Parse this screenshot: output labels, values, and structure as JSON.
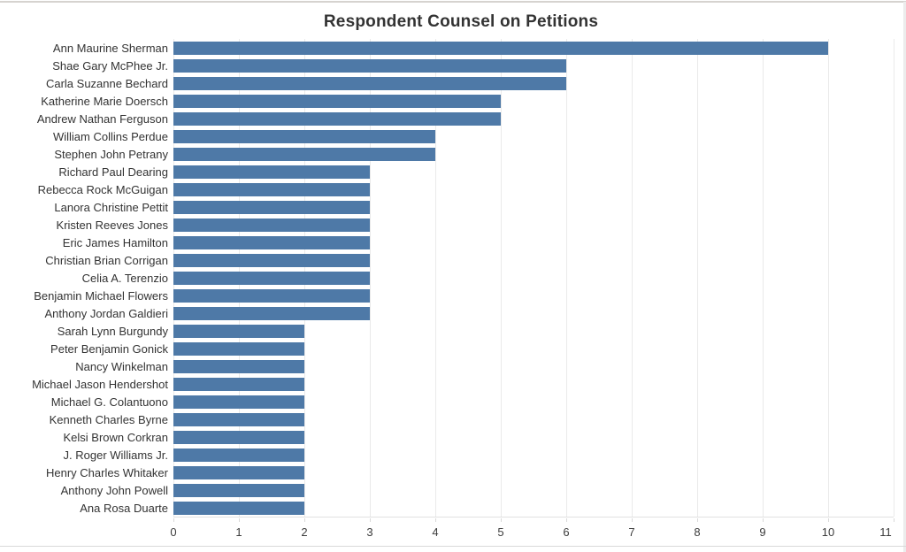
{
  "window": {
    "background": "#ffffff",
    "top_border_color": "#d6d3cf",
    "bottom_border_color": "#d9d9d9",
    "right_edge_color": "#ececec"
  },
  "chart_data": {
    "type": "bar",
    "orientation": "horizontal",
    "title": "Respondent Counsel on Petitions",
    "categories": [
      "Ann Maurine Sherman",
      "Shae Gary McPhee Jr.",
      "Carla Suzanne Bechard",
      "Katherine Marie Doersch",
      "Andrew Nathan Ferguson",
      "William Collins Perdue",
      "Stephen John Petrany",
      "Richard Paul Dearing",
      "Rebecca Rock McGuigan",
      "Lanora Christine Pettit",
      "Kristen Reeves Jones",
      "Eric James Hamilton",
      "Christian Brian Corrigan",
      "Celia A. Terenzio",
      "Benjamin Michael Flowers",
      "Anthony Jordan Galdieri",
      "Sarah Lynn Burgundy",
      "Peter Benjamin Gonick",
      "Nancy Winkelman",
      "Michael Jason Hendershot",
      "Michael G. Colantuono",
      "Kenneth Charles Byrne",
      "Kelsi Brown Corkran",
      "J. Roger Williams Jr.",
      "Henry Charles Whitaker",
      "Anthony John Powell",
      "Ana Rosa Duarte"
    ],
    "values": [
      10,
      6,
      6,
      5,
      5,
      4,
      4,
      3,
      3,
      3,
      3,
      3,
      3,
      3,
      3,
      3,
      2,
      2,
      2,
      2,
      2,
      2,
      2,
      2,
      2,
      2,
      2
    ],
    "xlabel": "",
    "ylabel": "",
    "xlim": [
      0,
      11
    ],
    "x_ticks": [
      0,
      1,
      2,
      3,
      4,
      5,
      6,
      7,
      8,
      9,
      10,
      11
    ],
    "grid": "on",
    "legend": "none",
    "bar_color": "#4e79a7",
    "gridline_color": "#eaeaea",
    "title_color": "#333333",
    "axis_label_color": "#333333"
  }
}
